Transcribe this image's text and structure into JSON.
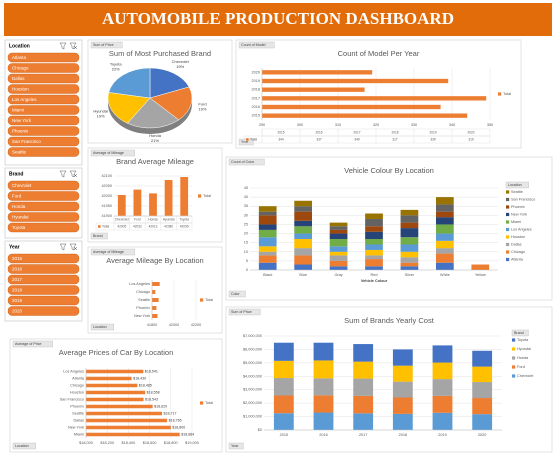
{
  "header": {
    "title": "AUTOMOBILE PRODUCTION DASHBOARD"
  },
  "slicers": [
    {
      "title": "Location",
      "items": [
        "Atlanta",
        "Chicago",
        "Dallas",
        "Houston",
        "Los Angeles",
        "Miami",
        "New York",
        "Phoenix",
        "San Francisco",
        "Seattle"
      ]
    },
    {
      "title": "Brand",
      "items": [
        "Chevrolet",
        "Ford",
        "Honda",
        "Hyundai",
        "Toyota"
      ]
    },
    {
      "title": "Year",
      "items": [
        "2015",
        "2016",
        "2017",
        "2018",
        "2019",
        "2020"
      ]
    }
  ],
  "chart_data": [
    {
      "type": "pie",
      "title": "Sum of Most Purchased Brand",
      "value_button": "Sum of Price",
      "categories": [
        "Chevrolet",
        "Ford",
        "Honda",
        "Hyundai",
        "Toyota"
      ],
      "values": [
        19,
        19,
        21,
        19,
        22
      ],
      "value_labels": [
        "19%",
        "19%",
        "21%",
        "19%",
        "22%"
      ],
      "colors": [
        "#4472c4",
        "#ed7d31",
        "#a5a5a5",
        "#ffc000",
        "#5b9bd5"
      ]
    },
    {
      "type": "hbar",
      "title": "Count of Model Per Year",
      "value_button": "Count of Model",
      "field_button": "Year",
      "categories": [
        "2015",
        "2016",
        "2017",
        "2018",
        "2019",
        "2020"
      ],
      "series": [
        {
          "name": "Total",
          "color": "#ed7d31",
          "values": [
            344,
            337,
            349,
            317,
            339,
            319
          ]
        }
      ],
      "xlim": [
        290,
        350
      ],
      "xticks": [
        290,
        300,
        310,
        320,
        330,
        340,
        350
      ],
      "grid": true,
      "data_table": true
    },
    {
      "type": "bar",
      "title": "Brand Average Mileage",
      "value_button": "Average of Mileage",
      "field_button": "Brand",
      "categories": [
        "Chevrolet",
        "Ford",
        "Honda",
        "Hyundai",
        "Toyota"
      ],
      "series": [
        {
          "name": "Total",
          "color": "#ed7d31",
          "values": [
            42005,
            42032,
            42013,
            42080,
            42095
          ]
        }
      ],
      "ylim": [
        41900,
        42100
      ],
      "yticks": [
        41900,
        41950,
        42000,
        42050,
        42100
      ],
      "grid": true,
      "data_table": true
    },
    {
      "type": "hbar",
      "title": "Average Mileage By Location",
      "value_button": "Average of Mileage",
      "field_button": "Location",
      "categories": [
        "New York",
        "Phoenix",
        "Seattle",
        "Chicago",
        "Los Angeles"
      ],
      "series": [
        {
          "name": "Total",
          "color": "#ed7d31",
          "values": [
            41850,
            41840,
            41860,
            41830,
            41870
          ]
        }
      ],
      "xlim": [
        41800,
        42200
      ],
      "xticks": [
        41800,
        42000,
        42200
      ],
      "grid": true
    },
    {
      "type": "hbar",
      "title": "Average Prices of Car By Location",
      "value_button": "Average of Price",
      "field_button": "Location",
      "categories": [
        "Miami",
        "New York",
        "Dallas",
        "Seattle",
        "Phoenix",
        "San Francisco",
        "Houston",
        "Chicago",
        "Atlanta",
        "Los Angeles"
      ],
      "series": [
        {
          "name": "Total",
          "color": "#ed7d31",
          "values": [
            18884,
            18800,
            18765,
            18717,
            18629,
            18543,
            18558,
            18485,
            18430,
            18541
          ],
          "value_labels": [
            "$18,884",
            "$18,800",
            "$18,765",
            "$18,717",
            "$18,629",
            "$18,543",
            "$18,558",
            "$18,485",
            "$18,430",
            "$18,541"
          ]
        }
      ],
      "xlim": [
        18000,
        19000
      ],
      "xticks": [
        {
          "value": 18000,
          "label": "$18,000"
        },
        {
          "value": 18200,
          "label": "$18,200"
        },
        {
          "value": 18400,
          "label": "$18,400"
        },
        {
          "value": 18600,
          "label": "$18,600"
        },
        {
          "value": 18800,
          "label": "$18,800"
        },
        {
          "value": 19000,
          "label": "$19,000"
        }
      ],
      "grid": true
    },
    {
      "type": "bar",
      "stacked": true,
      "title": "Vehicle Colour By Location",
      "value_button": "Count of Color",
      "field_button": "Color",
      "x_label": "Vehicle Colour",
      "legend_title": "Location",
      "categories": [
        "Black",
        "Blue",
        "Gray",
        "Red",
        "Silver",
        "White",
        "Yellow"
      ],
      "series": [
        {
          "name": "Atlanta",
          "color": "#4472c4",
          "values": [
            4,
            3,
            2,
            2,
            2,
            4,
            0
          ]
        },
        {
          "name": "Chicago",
          "color": "#ed7d31",
          "values": [
            4,
            5,
            3,
            4,
            2,
            5,
            3
          ]
        },
        {
          "name": "Dallas",
          "color": "#a5a5a5",
          "values": [
            2,
            4,
            3,
            2,
            3,
            3,
            0
          ]
        },
        {
          "name": "Houston",
          "color": "#ffc000",
          "values": [
            3,
            5,
            2,
            3,
            3,
            4,
            0
          ]
        },
        {
          "name": "Los Angeles",
          "color": "#5b9bd5",
          "values": [
            5,
            3,
            3,
            3,
            4,
            4,
            0
          ]
        },
        {
          "name": "Miami",
          "color": "#70ad47",
          "values": [
            4,
            4,
            4,
            3,
            4,
            5,
            0
          ]
        },
        {
          "name": "New York",
          "color": "#264478",
          "values": [
            3,
            3,
            3,
            4,
            5,
            4,
            0
          ]
        },
        {
          "name": "Phoenix",
          "color": "#9e480e",
          "values": [
            5,
            5,
            2,
            3,
            3,
            3,
            0
          ]
        },
        {
          "name": "San Francisco",
          "color": "#636363",
          "values": [
            2,
            3,
            2,
            4,
            4,
            4,
            0
          ]
        },
        {
          "name": "Seattle",
          "color": "#997300",
          "values": [
            3,
            3,
            2,
            3,
            3,
            4,
            0
          ]
        }
      ],
      "ylim": [
        0,
        45
      ],
      "yticks": [
        0,
        5,
        10,
        15,
        20,
        25,
        30,
        35,
        40,
        45
      ],
      "grid": true,
      "legend": "right"
    },
    {
      "type": "bar",
      "stacked": true,
      "title": "Sum of Brands Yearly Cost",
      "value_button": "Sum of Price",
      "field_button": "Year",
      "legend_title": "Brand",
      "categories": [
        "2015",
        "2016",
        "2017",
        "2018",
        "2019",
        "2020"
      ],
      "series": [
        {
          "name": "Chevrolet",
          "color": "#5b9bd5",
          "values": [
            1250000,
            1300000,
            1240000,
            1200000,
            1280000,
            1180000
          ]
        },
        {
          "name": "Ford",
          "color": "#ed7d31",
          "values": [
            1320000,
            1280000,
            1300000,
            1220000,
            1260000,
            1200000
          ]
        },
        {
          "name": "Honda",
          "color": "#a5a5a5",
          "values": [
            1300000,
            1270000,
            1290000,
            1180000,
            1250000,
            1190000
          ]
        },
        {
          "name": "Hyundai",
          "color": "#ffc000",
          "values": [
            1280000,
            1330000,
            1260000,
            1190000,
            1230000,
            1150000
          ]
        },
        {
          "name": "Toyota",
          "color": "#4472c4",
          "values": [
            1350000,
            1320000,
            1310000,
            1210000,
            1280000,
            1180000
          ]
        }
      ],
      "ylim": [
        0,
        7000000
      ],
      "yticks": [
        {
          "value": 0,
          "label": "$0"
        },
        {
          "value": 1000000,
          "label": "$1,000,000"
        },
        {
          "value": 2000000,
          "label": "$2,000,000"
        },
        {
          "value": 3000000,
          "label": "$3,000,000"
        },
        {
          "value": 4000000,
          "label": "$4,000,000"
        },
        {
          "value": 5000000,
          "label": "$5,000,000"
        },
        {
          "value": 6000000,
          "label": "$6,000,000"
        },
        {
          "value": 7000000,
          "label": "$7,000,000"
        }
      ],
      "grid": true,
      "legend": "right"
    }
  ]
}
